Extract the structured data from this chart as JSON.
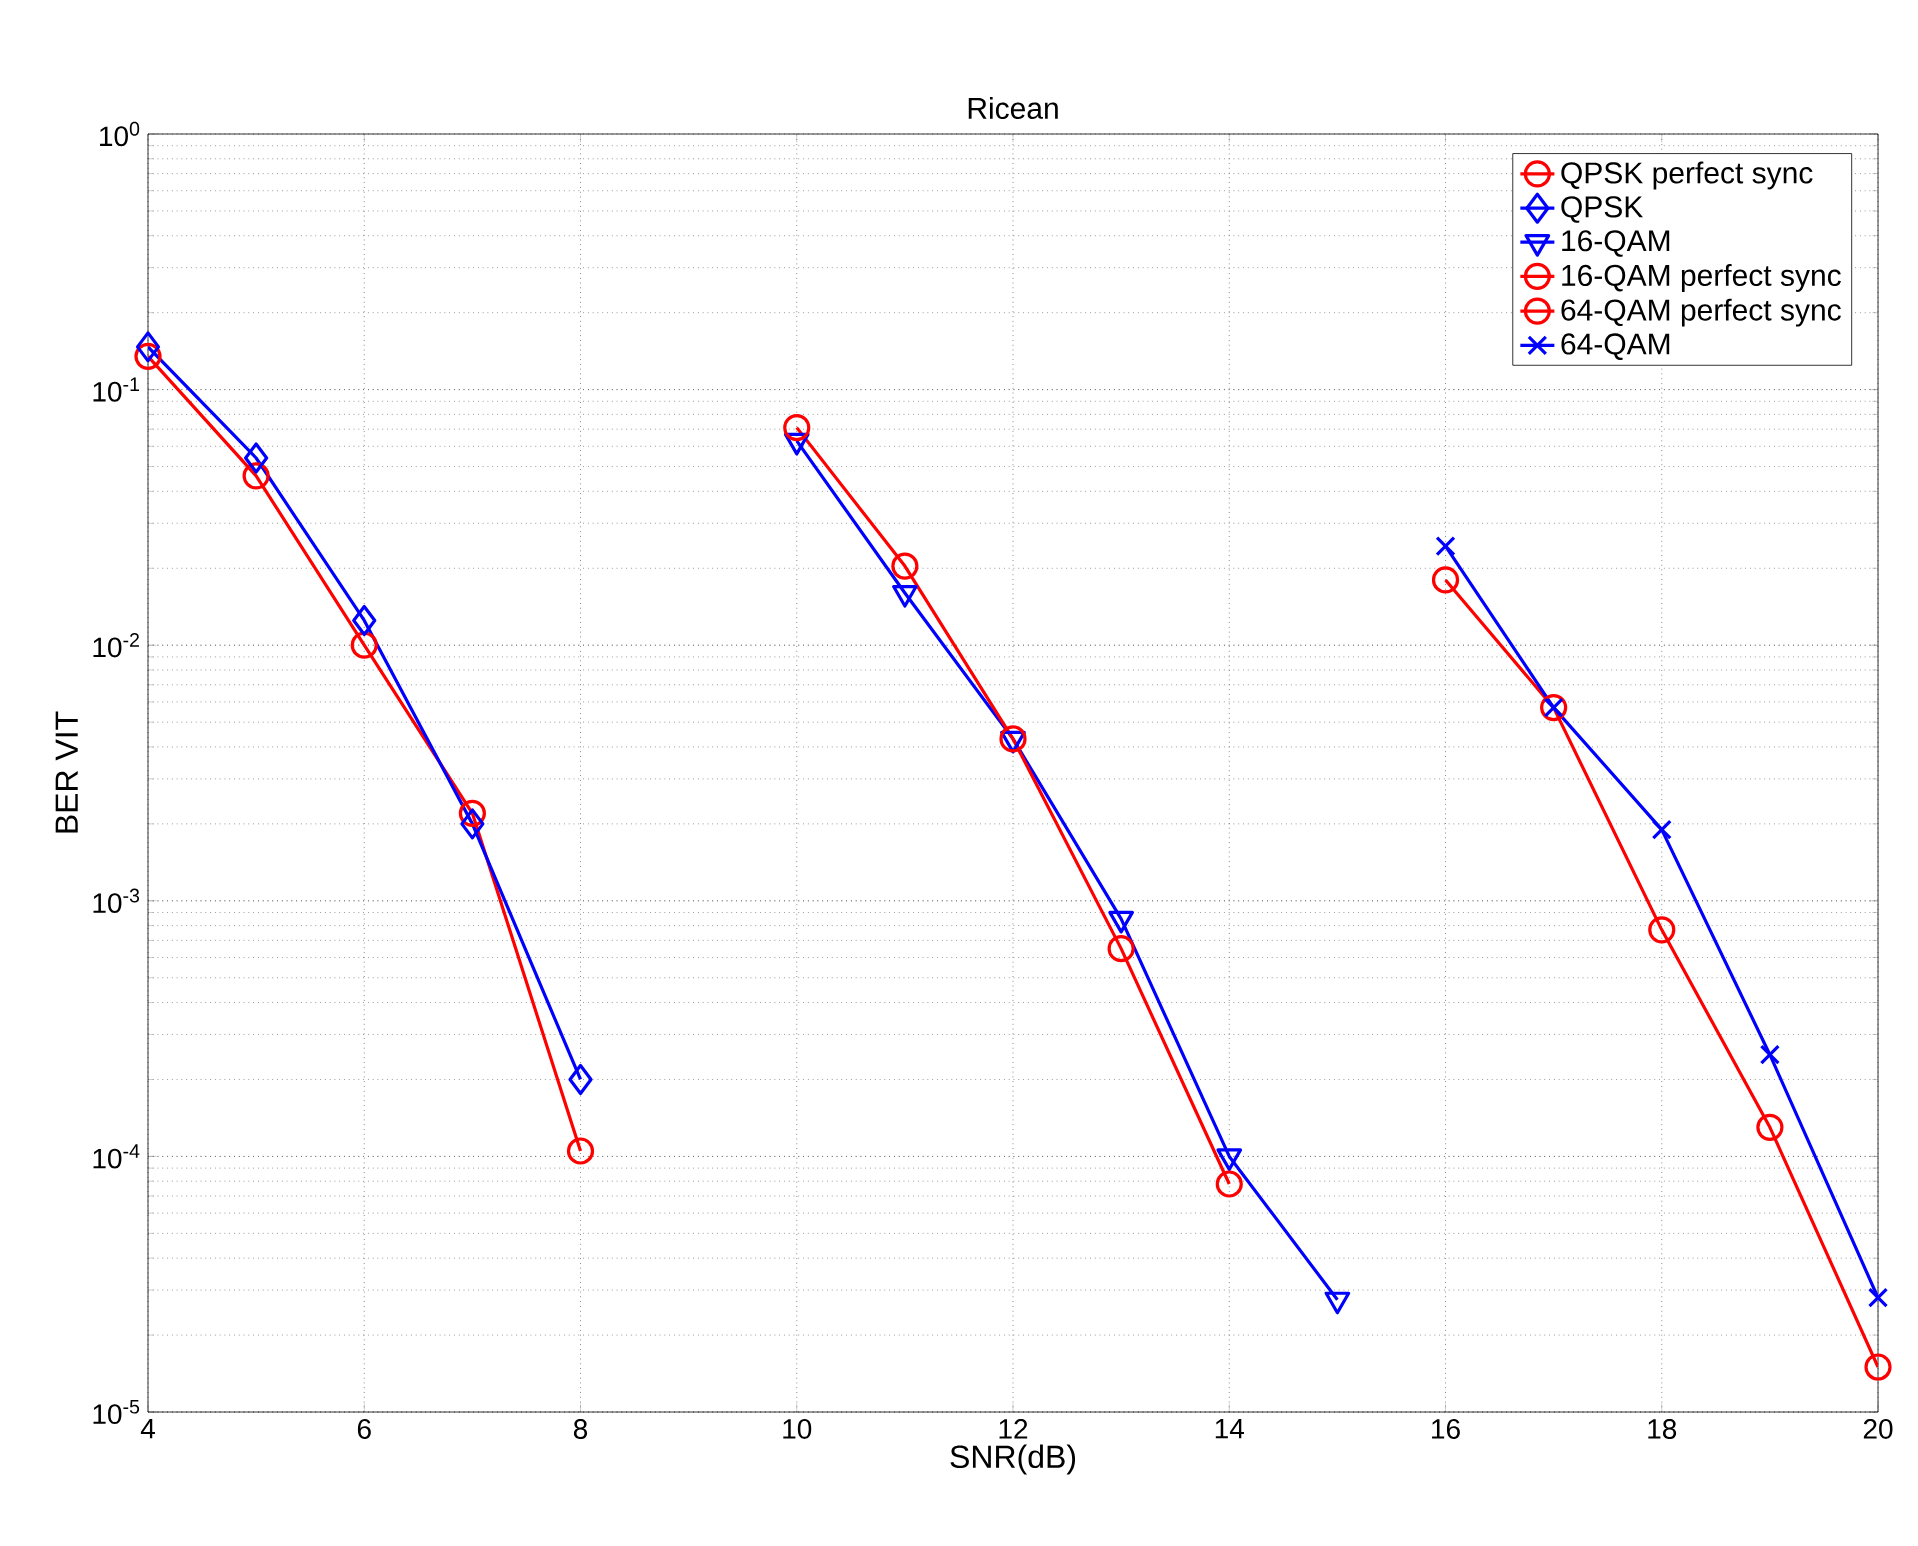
{
  "chart_data": {
    "type": "line",
    "title": "Ricean",
    "xlabel": "SNR(dB)",
    "ylabel": "BER VIT",
    "log": "y",
    "grid": true,
    "legend": "top right",
    "line_style": "solid",
    "xlim": [
      4,
      20
    ],
    "xticks": [
      4,
      6,
      8,
      10,
      12,
      14,
      16,
      18,
      20
    ],
    "ylim": [
      1e-05,
      1
    ],
    "yticks": [
      {
        "value": 1e-05,
        "label": "10$^{-5}$"
      },
      {
        "value": 0.0001,
        "label": "10$^{-4}$"
      },
      {
        "value": 0.001,
        "label": "10$^{-3}$"
      },
      {
        "value": 0.01,
        "label": "10$^{-2}$"
      },
      {
        "value": 0.1,
        "label": "10$^{-1}$"
      },
      {
        "value": 1,
        "label": "10$^{0}$"
      }
    ],
    "series": [
      {
        "name": "QPSK perfect sync",
        "color": "#ff0000",
        "marker": "circle",
        "x": [
          4,
          5,
          6,
          7,
          8
        ],
        "values": [
          0.135,
          0.046,
          0.01,
          0.0022,
          0.000105
        ]
      },
      {
        "name": "QPSK",
        "color": "#0000ff",
        "marker": "diamond",
        "x": [
          4,
          5,
          6,
          7,
          8
        ],
        "values": [
          0.147,
          0.054,
          0.0125,
          0.002,
          0.0002
        ]
      },
      {
        "name": "16-QAM",
        "color": "#0000ff",
        "marker": "triangle",
        "x": [
          10,
          11,
          12,
          13,
          14,
          15
        ],
        "values": [
          0.063,
          0.016,
          0.0043,
          0.00085,
          0.0001,
          2.75e-05
        ]
      },
      {
        "name": "16-QAM perfect sync",
        "color": "#ff0000",
        "marker": "circle",
        "x": [
          10,
          11,
          12,
          13,
          14
        ],
        "values": [
          0.071,
          0.0204,
          0.0043,
          0.00065,
          7.8e-05
        ]
      },
      {
        "name": "64-QAM perfect sync",
        "color": "#ff0000",
        "marker": "circle",
        "x": [
          16,
          17,
          18,
          19,
          20
        ],
        "values": [
          0.018,
          0.0057,
          0.00077,
          0.00013,
          1.5e-05
        ]
      },
      {
        "name": "64-QAM",
        "color": "#0000ff",
        "marker": "cross",
        "x": [
          16,
          17,
          18,
          19,
          20
        ],
        "values": [
          0.0244,
          0.0057,
          0.0019,
          0.00025,
          2.8e-05
        ]
      }
    ]
  }
}
